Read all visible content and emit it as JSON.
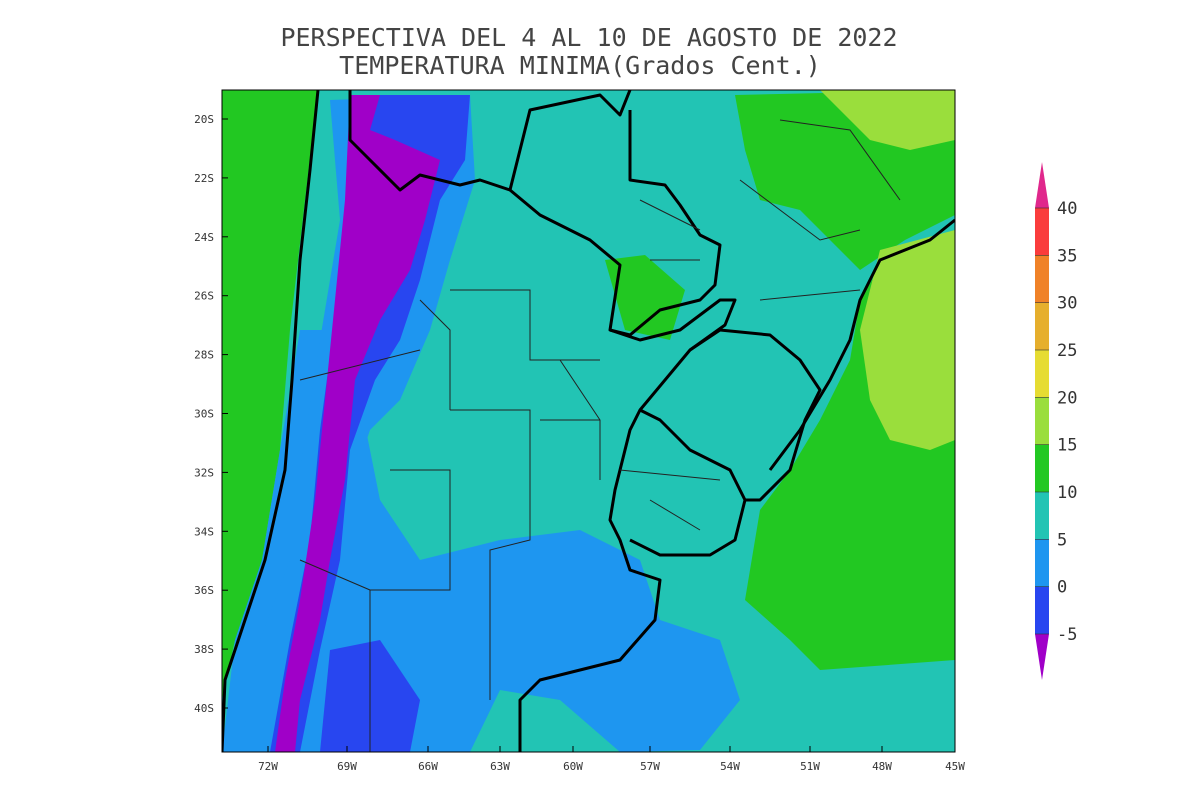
{
  "title": [
    "PERSPECTIVA DEL 4 AL 10 DE AGOSTO DE 2022",
    "TEMPERATURA MINIMA(Grados Cent.)"
  ],
  "map": {
    "lat_labels": [
      "20S",
      "22S",
      "24S",
      "26S",
      "28S",
      "30S",
      "32S",
      "34S",
      "36S",
      "38S",
      "40S"
    ],
    "lon_labels": [
      "72W",
      "69W",
      "66W",
      "63W",
      "60W",
      "57W",
      "54W",
      "51W",
      "48W",
      "45W"
    ]
  },
  "colorbar": {
    "levels": [
      -5,
      0,
      5,
      10,
      15,
      20,
      25,
      30,
      35,
      40
    ],
    "colors": [
      "#a000c8",
      "#2846f0",
      "#1e96f0",
      "#22c4b4",
      "#22c822",
      "#9ade3c",
      "#e6dc32",
      "#e6af2d",
      "#f08228",
      "#fa3c3c",
      "#e0288c"
    ]
  }
}
